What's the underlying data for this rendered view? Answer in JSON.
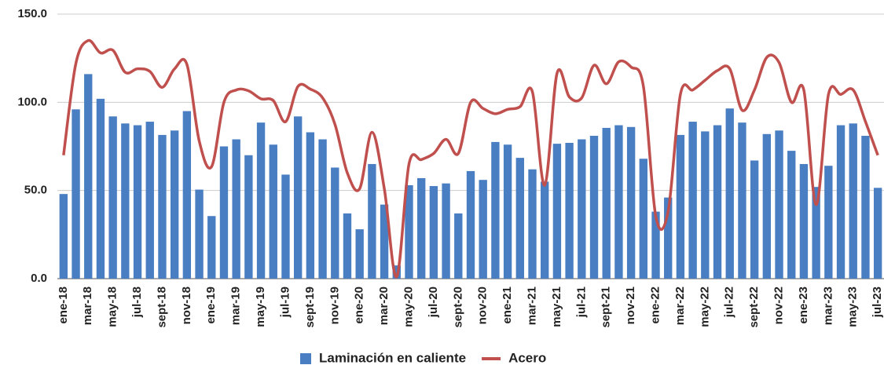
{
  "chart_data": {
    "type": "bar_line",
    "categories": [
      "ene-18",
      null,
      "mar-18",
      null,
      "may-18",
      null,
      "jul-18",
      null,
      "sept-18",
      null,
      "nov-18",
      null,
      "ene-19",
      null,
      "mar-19",
      null,
      "may-19",
      null,
      "jul-19",
      null,
      "sept-19",
      null,
      "nov-19",
      null,
      "ene-20",
      null,
      "mar-20",
      null,
      "may-20",
      null,
      "jul-20",
      null,
      "sept-20",
      null,
      "nov-20",
      null,
      "ene-21",
      null,
      "mar-21",
      null,
      "may-21",
      null,
      "jul-21",
      null,
      "sept-21",
      null,
      "nov-21",
      null,
      "ene-22",
      null,
      "mar-22",
      null,
      "may-22",
      null,
      "jul-22",
      null,
      "sept-22",
      null,
      "nov-22",
      null,
      "ene-23",
      null,
      "mar-23",
      null,
      "may-23",
      null,
      "jul-23"
    ],
    "series": [
      {
        "name": "Laminación en caliente",
        "type": "bar",
        "color": "#4a7ec2",
        "values": [
          48,
          96,
          116,
          102,
          92,
          88,
          87,
          89,
          81.5,
          84,
          95,
          50.5,
          35.5,
          75,
          79,
          70,
          88.5,
          76,
          59,
          92,
          83,
          79,
          63,
          37,
          28,
          65,
          42,
          7.5,
          53,
          57,
          52.5,
          54,
          37,
          61,
          56,
          77.5,
          76,
          68.5,
          62,
          55,
          76.5,
          77,
          79,
          81,
          85.5,
          87,
          86,
          68,
          38,
          46,
          81.5,
          89,
          83.5,
          87,
          96.5,
          88.5,
          67,
          82,
          84,
          72.5,
          65,
          52,
          64,
          87,
          88,
          81,
          51.5
        ]
      },
      {
        "name": "Acero",
        "type": "line",
        "color": "#c0504d",
        "values": [
          70,
          122,
          135,
          128,
          129.5,
          117,
          119,
          117.5,
          108.5,
          119,
          121.5,
          78,
          63.5,
          100,
          107,
          106.5,
          102,
          101,
          89,
          109,
          107.5,
          102.5,
          87.5,
          60,
          51,
          83,
          51,
          1,
          65,
          67.5,
          71,
          79,
          71,
          100,
          96.5,
          93.5,
          96,
          97.5,
          106,
          53,
          116.5,
          103,
          102.5,
          121,
          110.5,
          123,
          120,
          109,
          35.5,
          38,
          104.5,
          107,
          112.5,
          118,
          119,
          95.5,
          107,
          125.5,
          122.5,
          100,
          107,
          42,
          104.5,
          104.5,
          107,
          89,
          70
        ]
      }
    ],
    "ylim": [
      0,
      150
    ],
    "yticks": [
      {
        "value": 0,
        "label": "0.0"
      },
      {
        "value": 50,
        "label": "50.0"
      },
      {
        "value": 100,
        "label": "100.0"
      },
      {
        "value": 150,
        "label": "150.0"
      }
    ],
    "grid": true,
    "legend": "bottom"
  }
}
